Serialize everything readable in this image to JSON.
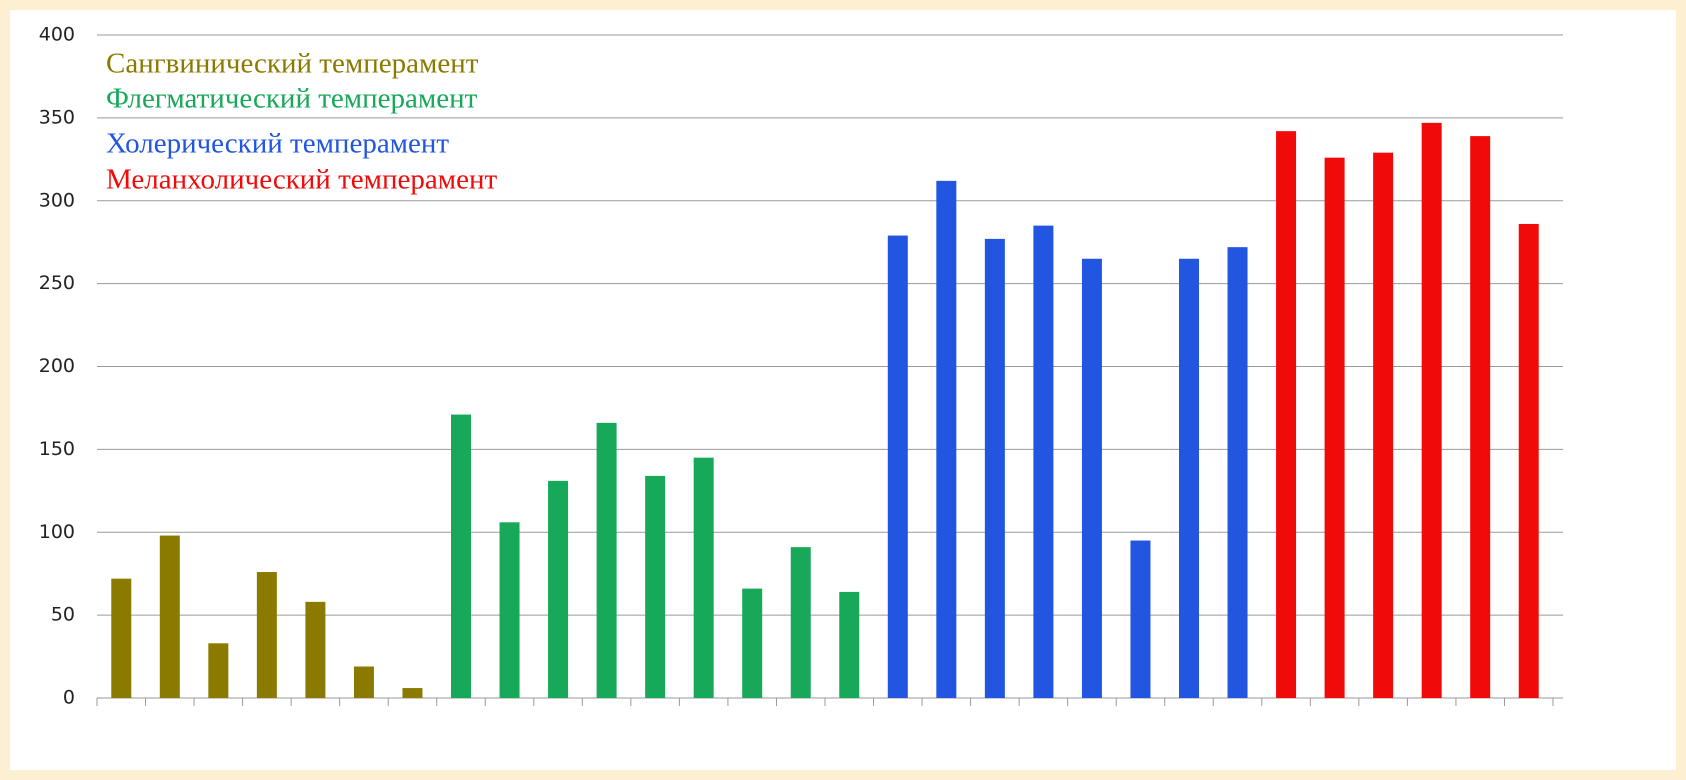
{
  "chart_data": {
    "type": "bar",
    "categories": [
      null,
      null,
      null,
      null,
      null,
      null,
      null,
      null,
      null,
      null,
      null,
      null,
      null,
      null,
      null,
      null,
      null,
      null,
      null,
      null,
      null,
      null,
      null,
      null,
      null,
      null,
      null,
      null,
      null,
      null
    ],
    "series": [
      {
        "name": "Сангвинический темперамент",
        "color": "#8b7a00",
        "values": [
          72,
          98,
          33,
          76,
          58,
          19,
          6,
          null,
          null,
          null,
          null,
          null,
          null,
          null,
          null,
          null,
          null,
          null,
          null,
          null,
          null,
          null,
          null,
          null,
          null,
          null,
          null,
          null,
          null,
          null
        ]
      },
      {
        "name": "Флегматический темперамент",
        "color": "#17a85a",
        "values": [
          null,
          null,
          null,
          null,
          null,
          null,
          null,
          171,
          106,
          131,
          166,
          134,
          145,
          66,
          91,
          64,
          null,
          null,
          null,
          null,
          null,
          null,
          null,
          null,
          null,
          null,
          null,
          null,
          null,
          null
        ]
      },
      {
        "name": "Холерический темперамент",
        "color": "#2255e0",
        "values": [
          null,
          null,
          null,
          null,
          null,
          null,
          null,
          null,
          null,
          null,
          null,
          null,
          null,
          null,
          null,
          null,
          279,
          312,
          277,
          285,
          265,
          95,
          265,
          272,
          null,
          null,
          null,
          null,
          null,
          null
        ]
      },
      {
        "name": "Меланхолический темперамент",
        "color": "#f00a0a",
        "values": [
          null,
          null,
          null,
          null,
          null,
          null,
          null,
          null,
          null,
          null,
          null,
          null,
          null,
          null,
          null,
          null,
          null,
          null,
          null,
          null,
          null,
          null,
          null,
          null,
          342,
          326,
          329,
          347,
          339,
          286
        ]
      }
    ],
    "ylim": [
      0,
      400
    ],
    "yticks": [
      0,
      50,
      100,
      150,
      200,
      250,
      300,
      350,
      400
    ],
    "grid": true
  }
}
